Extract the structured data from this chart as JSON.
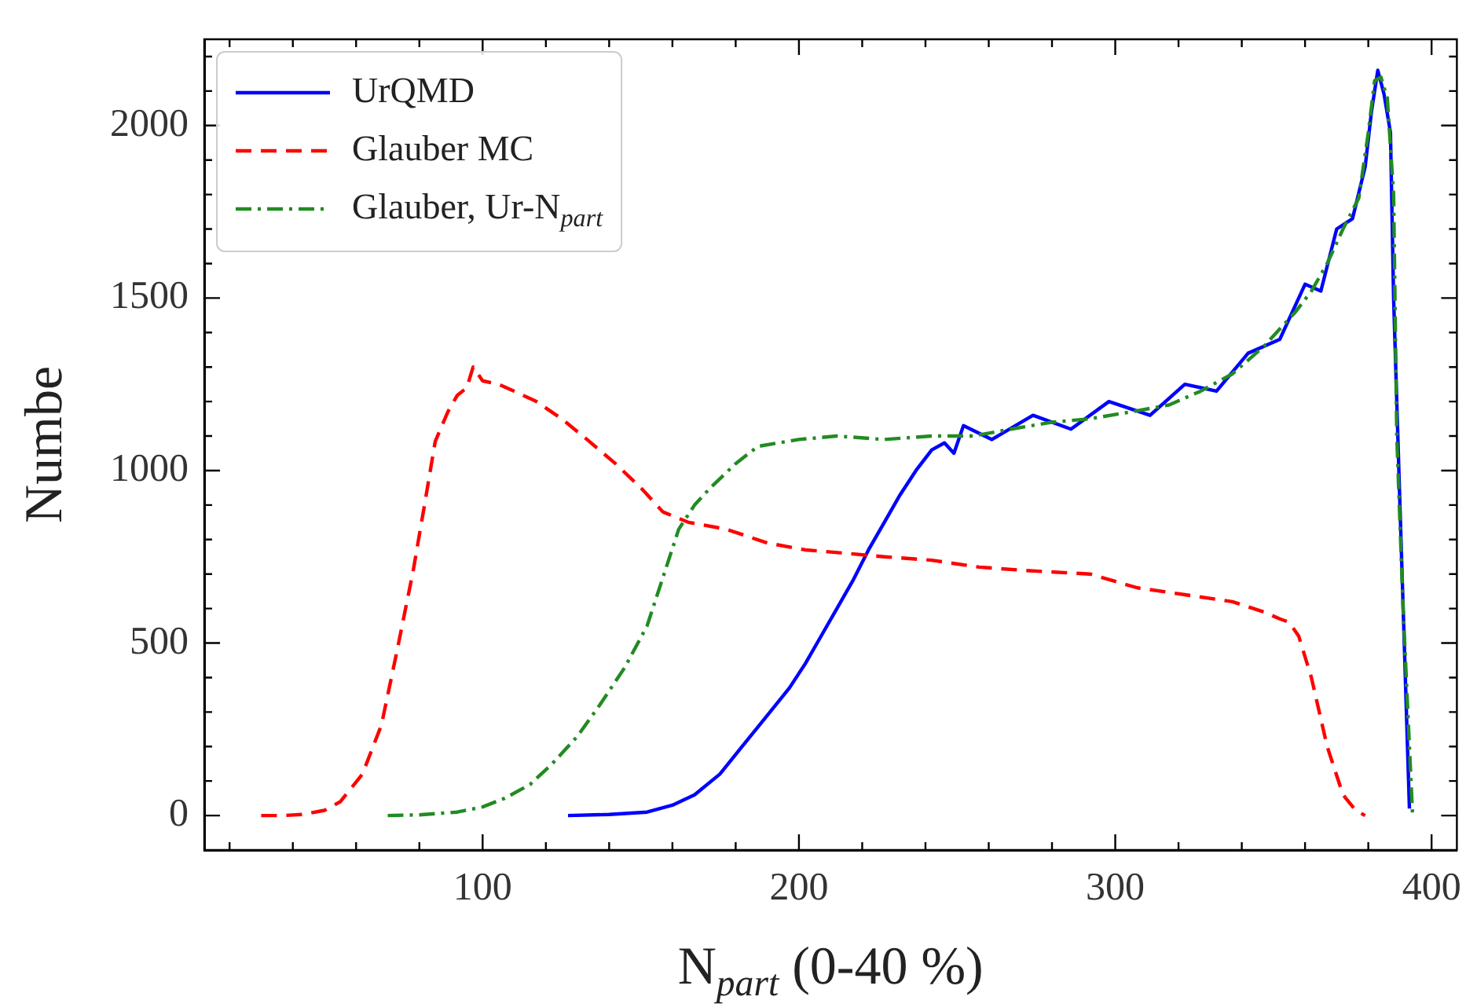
{
  "chart_data": {
    "type": "line",
    "xlabel": "N$_{part}$ (0-40 %)",
    "ylabel": "Numbe",
    "xlim": [
      12,
      408
    ],
    "ylim": [
      -100,
      2250
    ],
    "xticks": [
      {
        "value": 20,
        "label": null
      },
      {
        "value": 40,
        "label": null
      },
      {
        "value": 60,
        "label": null
      },
      {
        "value": 80,
        "label": null
      },
      100,
      {
        "value": 120,
        "label": null
      },
      {
        "value": 140,
        "label": null
      },
      {
        "value": 160,
        "label": null
      },
      {
        "value": 180,
        "label": null
      },
      200,
      {
        "value": 220,
        "label": null
      },
      {
        "value": 240,
        "label": null
      },
      {
        "value": 260,
        "label": null
      },
      {
        "value": 280,
        "label": null
      },
      300,
      {
        "value": 320,
        "label": null
      },
      {
        "value": 340,
        "label": null
      },
      {
        "value": 360,
        "label": null
      },
      {
        "value": 380,
        "label": null
      },
      400
    ],
    "yticks": [
      0,
      {
        "value": 100,
        "label": null
      },
      {
        "value": 200,
        "label": null
      },
      {
        "value": 300,
        "label": null
      },
      {
        "value": 400,
        "label": null
      },
      500,
      {
        "value": 600,
        "label": null
      },
      {
        "value": 700,
        "label": null
      },
      {
        "value": 800,
        "label": null
      },
      {
        "value": 900,
        "label": null
      },
      1000,
      {
        "value": 1100,
        "label": null
      },
      {
        "value": 1200,
        "label": null
      },
      {
        "value": 1300,
        "label": null
      },
      {
        "value": 1400,
        "label": null
      },
      1500,
      {
        "value": 1600,
        "label": null
      },
      {
        "value": 1700,
        "label": null
      },
      {
        "value": 1800,
        "label": null
      },
      {
        "value": 1900,
        "label": null
      },
      2000,
      {
        "value": 2100,
        "label": null
      },
      {
        "value": 2200,
        "label": null
      }
    ],
    "grid": false,
    "legend": "top left",
    "series": [
      {
        "name": "UrQMD",
        "color": "#0000ff",
        "line_style": "solid",
        "x": [
          127,
          140,
          152,
          160,
          167,
          175,
          182,
          190,
          197,
          202,
          207,
          212,
          217,
          222,
          227,
          232,
          237,
          242,
          246,
          249,
          252,
          261,
          274,
          286,
          298,
          311,
          322,
          332,
          342,
          352,
          360,
          365,
          370,
          375,
          379,
          381,
          383,
          385,
          387,
          388,
          390,
          393
        ],
        "values": [
          0,
          3,
          10,
          30,
          60,
          120,
          200,
          290,
          370,
          440,
          520,
          600,
          680,
          770,
          850,
          930,
          1000,
          1060,
          1080,
          1050,
          1130,
          1090,
          1160,
          1120,
          1200,
          1160,
          1250,
          1230,
          1340,
          1380,
          1540,
          1520,
          1700,
          1730,
          1880,
          2040,
          2160,
          2090,
          1980,
          1500,
          900,
          20
        ]
      },
      {
        "name": "Glauber MC",
        "color": "#ff0000",
        "line_style": "dashed",
        "x": [
          30,
          37,
          43,
          50,
          55,
          62,
          68,
          73,
          78,
          82,
          85,
          89,
          92,
          95,
          97,
          100,
          105,
          110,
          117,
          125,
          133,
          142,
          150,
          157,
          165,
          177,
          190,
          202,
          215,
          227,
          242,
          257,
          272,
          292,
          307,
          322,
          337,
          347,
          352,
          355,
          358,
          362,
          367,
          372,
          376,
          379
        ],
        "values": [
          0,
          0,
          3,
          15,
          40,
          120,
          262,
          480,
          707,
          920,
          1084,
          1170,
          1218,
          1240,
          1300,
          1260,
          1250,
          1230,
          1200,
          1150,
          1090,
          1020,
          950,
          880,
          850,
          830,
          790,
          770,
          760,
          750,
          740,
          720,
          710,
          700,
          660,
          640,
          620,
          590,
          570,
          560,
          520,
          400,
          200,
          60,
          15,
          0
        ]
      },
      {
        "name": "Glauber, Ur-N$_{part}$",
        "color": "#228b22",
        "line_style": "dashdot",
        "x": [
          70,
          80,
          92,
          100,
          107,
          115,
          122,
          130,
          137,
          145,
          152,
          157,
          162,
          167,
          172,
          180,
          187,
          200,
          212,
          227,
          242,
          255,
          267,
          280,
          292,
          305,
          317,
          327,
          337,
          347,
          357,
          362,
          367,
          372,
          377,
          380,
          382,
          384,
          386,
          388,
          389,
          391,
          394
        ],
        "values": [
          0,
          2,
          10,
          25,
          50,
          90,
          150,
          230,
          320,
          430,
          550,
          690,
          830,
          900,
          950,
          1020,
          1070,
          1090,
          1100,
          1090,
          1100,
          1100,
          1120,
          1140,
          1150,
          1170,
          1190,
          1230,
          1280,
          1360,
          1460,
          1520,
          1600,
          1700,
          1790,
          1980,
          2130,
          2140,
          2080,
          1800,
          1100,
          600,
          0
        ]
      }
    ]
  }
}
